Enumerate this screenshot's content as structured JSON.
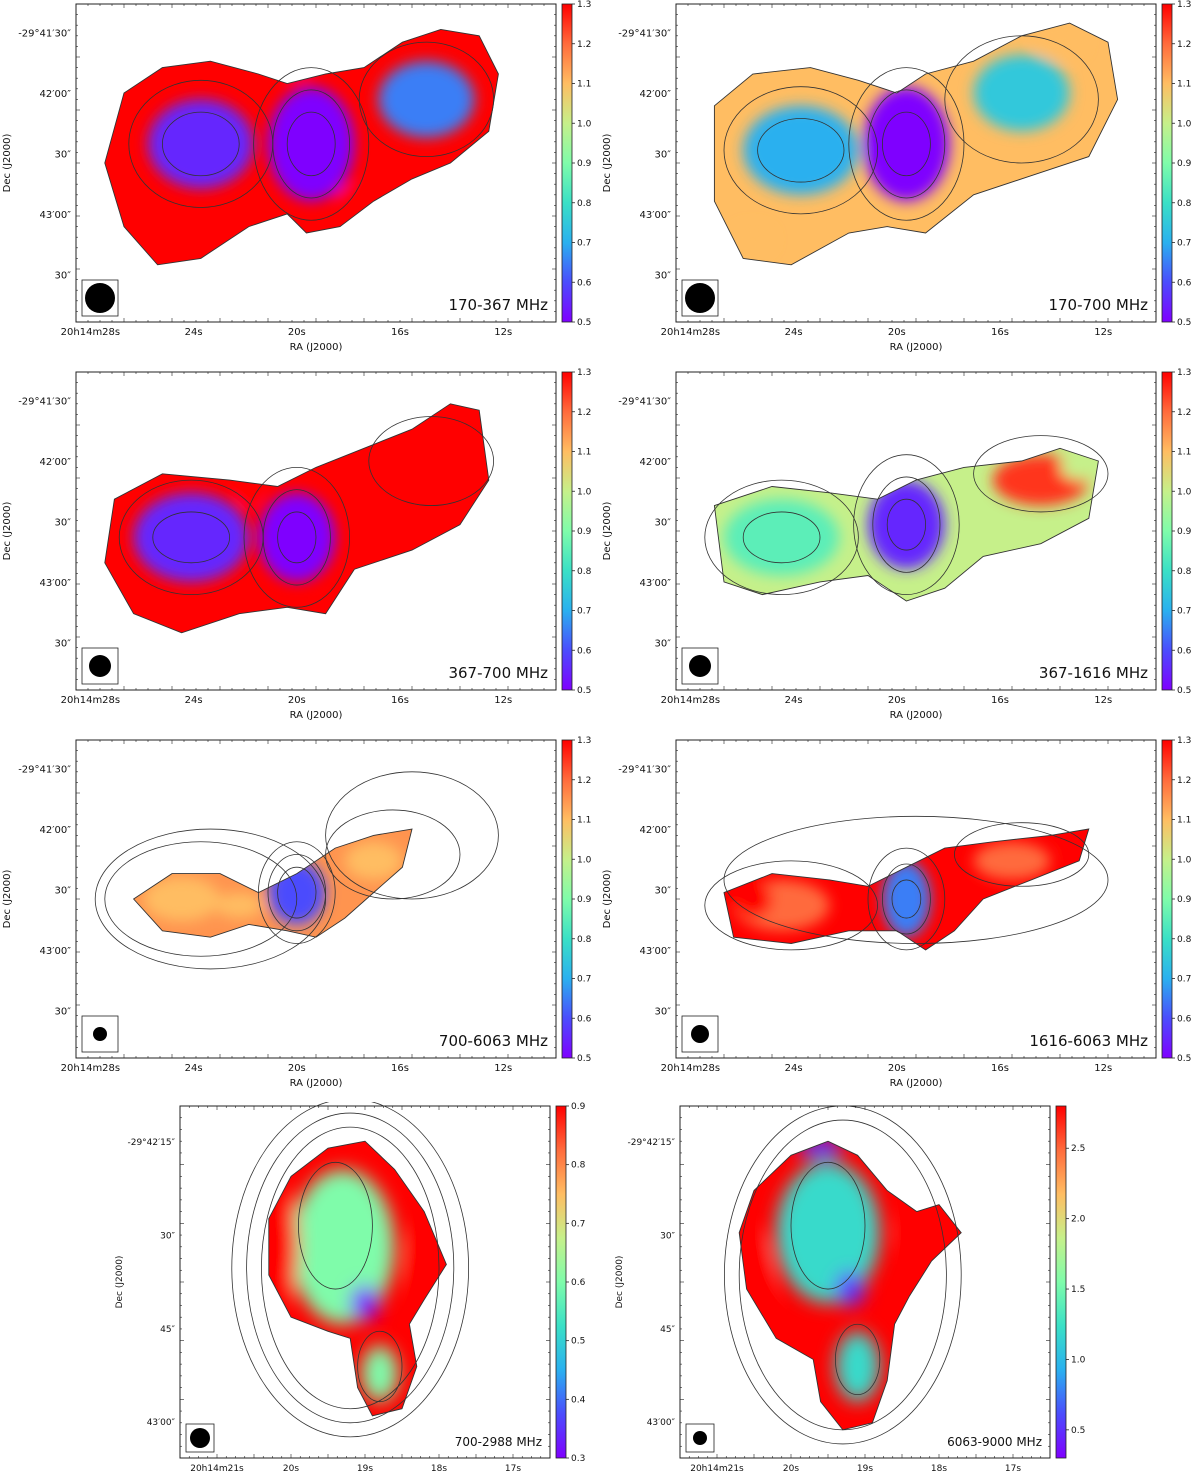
{
  "colors": {
    "colormap": [
      "#7f00ff",
      "#4b4cfd",
      "#2ab0ef",
      "#3ae0c6",
      "#7ffcaa",
      "#c6f08a",
      "#ffbd62",
      "#ff6b3c",
      "#ff0000"
    ],
    "contour": "#333333",
    "beam": "#000000"
  },
  "chart_data": [
    {
      "type": "heatmap",
      "title": "170-367 MHz",
      "xlabel": "RA (J2000)",
      "ylabel": "Dec (J2000)",
      "x_ticks": [
        "20h14m28s",
        "24s",
        "20s",
        "16s",
        "12s"
      ],
      "y_ticks": [
        "-29°41′30″",
        "42′00″",
        "30″",
        "43′00″",
        "30″"
      ],
      "colorbar_range": [
        0.5,
        1.3
      ],
      "colorbar_ticks": [
        "1.3",
        "1.2",
        "1.1",
        "1.0",
        "0.9",
        "0.8",
        "0.7",
        "0.6",
        "0.5"
      ],
      "beam": "circle",
      "dominant_values": {
        "east_lobe": 0.55,
        "core": 0.5,
        "west_lobe": 0.65,
        "edges": 1.3
      }
    },
    {
      "type": "heatmap",
      "title": "170-700 MHz",
      "xlabel": "RA (J2000)",
      "ylabel": "Dec (J2000)",
      "x_ticks": [
        "20h14m28s",
        "24s",
        "20s",
        "16s",
        "12s"
      ],
      "y_ticks": [
        "-29°41′30″",
        "42′00″",
        "30″",
        "43′00″",
        "30″"
      ],
      "colorbar_range": [
        0.5,
        1.3
      ],
      "colorbar_ticks": [
        "1.3",
        "1.2",
        "1.1",
        "1.0",
        "0.9",
        "0.8",
        "0.7",
        "0.6",
        "0.5"
      ],
      "beam": "circle",
      "dominant_values": {
        "east_lobe": 0.7,
        "core": 0.5,
        "west_lobe": 0.75,
        "edges": 1.1
      }
    },
    {
      "type": "heatmap",
      "title": "367-700 MHz",
      "xlabel": "RA (J2000)",
      "ylabel": "Dec (J2000)",
      "x_ticks": [
        "20h14m28s",
        "24s",
        "20s",
        "16s",
        "12s"
      ],
      "y_ticks": [
        "-29°41′30″",
        "42′00″",
        "30″",
        "43′00″",
        "30″"
      ],
      "colorbar_range": [
        0.5,
        1.3
      ],
      "colorbar_ticks": [
        "1.3",
        "1.2",
        "1.1",
        "1.0",
        "0.9",
        "0.8",
        "0.7",
        "0.6",
        "0.5"
      ],
      "beam": "circle",
      "dominant_values": {
        "east_lobe": 0.55,
        "core": 0.5,
        "west_lobe": 1.3,
        "edges": 1.3
      }
    },
    {
      "type": "heatmap",
      "title": "367-1616 MHz",
      "xlabel": "RA (J2000)",
      "ylabel": "Dec (J2000)",
      "x_ticks": [
        "20h14m28s",
        "24s",
        "20s",
        "16s",
        "12s"
      ],
      "y_ticks": [
        "-29°41′30″",
        "42′00″",
        "30″",
        "43′00″",
        "30″"
      ],
      "colorbar_range": [
        0.5,
        1.3
      ],
      "colorbar_ticks": [
        "1.3",
        "1.2",
        "1.1",
        "1.0",
        "0.9",
        "0.8",
        "0.7",
        "0.6",
        "0.5"
      ],
      "beam": "circle",
      "dominant_values": {
        "east_lobe": 0.85,
        "core": 0.55,
        "west_lobe": 1.25,
        "edges": 1.0
      }
    },
    {
      "type": "heatmap",
      "title": "700-6063 MHz",
      "xlabel": "RA (J2000)",
      "ylabel": "Dec (J2000)",
      "x_ticks": [
        "20h14m28s",
        "24s",
        "20s",
        "16s",
        "12s"
      ],
      "y_ticks": [
        "-29°41′30″",
        "42′00″",
        "30″",
        "43′00″",
        "30″"
      ],
      "colorbar_range": [
        0.5,
        1.3
      ],
      "colorbar_ticks": [
        "1.3",
        "1.2",
        "1.1",
        "1.0",
        "0.9",
        "0.8",
        "0.7",
        "0.6",
        "0.5"
      ],
      "beam": "circle",
      "dominant_values": {
        "east_lobe": 1.1,
        "core": 0.6,
        "west_lobe": 1.1,
        "edges": 1.15
      }
    },
    {
      "type": "heatmap",
      "title": "1616-6063 MHz",
      "xlabel": "RA (J2000)",
      "ylabel": "Dec (J2000)",
      "x_ticks": [
        "20h14m28s",
        "24s",
        "20s",
        "16s",
        "12s"
      ],
      "y_ticks": [
        "-29°41′30″",
        "42′00″",
        "30″",
        "43′00″",
        "30″"
      ],
      "colorbar_range": [
        0.5,
        1.3
      ],
      "colorbar_ticks": [
        "1.3",
        "1.2",
        "1.1",
        "1.0",
        "0.9",
        "0.8",
        "0.7",
        "0.6",
        "0.5"
      ],
      "beam": "circle",
      "dominant_values": {
        "east_lobe": 1.2,
        "core": 0.65,
        "west_lobe": 1.2,
        "edges": 1.3
      }
    },
    {
      "type": "heatmap",
      "title": "700-2988 MHz",
      "xlabel": "RA (J2000)",
      "ylabel": "Dec (J2000)",
      "x_ticks": [
        "20h14m21s",
        "20s",
        "19s",
        "18s",
        "17s"
      ],
      "y_ticks": [
        "-29°42′15″",
        "30″",
        "45″",
        "43′00″"
      ],
      "colorbar_range": [
        0.3,
        0.9
      ],
      "colorbar_ticks": [
        "0.9",
        "0.8",
        "0.7",
        "0.6",
        "0.5",
        "0.4",
        "0.3"
      ],
      "beam": "circle",
      "dominant_values": {
        "interior": 0.6,
        "core": 0.3,
        "rim": 0.9
      }
    },
    {
      "type": "heatmap",
      "title": "6063-9000 MHz",
      "xlabel": "RA (J2000)",
      "ylabel": "Dec (J2000)",
      "x_ticks": [
        "20h14m21s",
        "20s",
        "19s",
        "18s",
        "17s"
      ],
      "y_ticks": [
        "-29°42′15″",
        "30″",
        "45″",
        "43′00″"
      ],
      "colorbar_range": [
        0.3,
        2.8
      ],
      "colorbar_ticks": [
        "2.5",
        "2.0",
        "1.5",
        "1.0",
        "0.5"
      ],
      "beam": "circle",
      "dominant_values": {
        "interior": 1.2,
        "core": 0.5,
        "rim": 2.8
      }
    }
  ]
}
